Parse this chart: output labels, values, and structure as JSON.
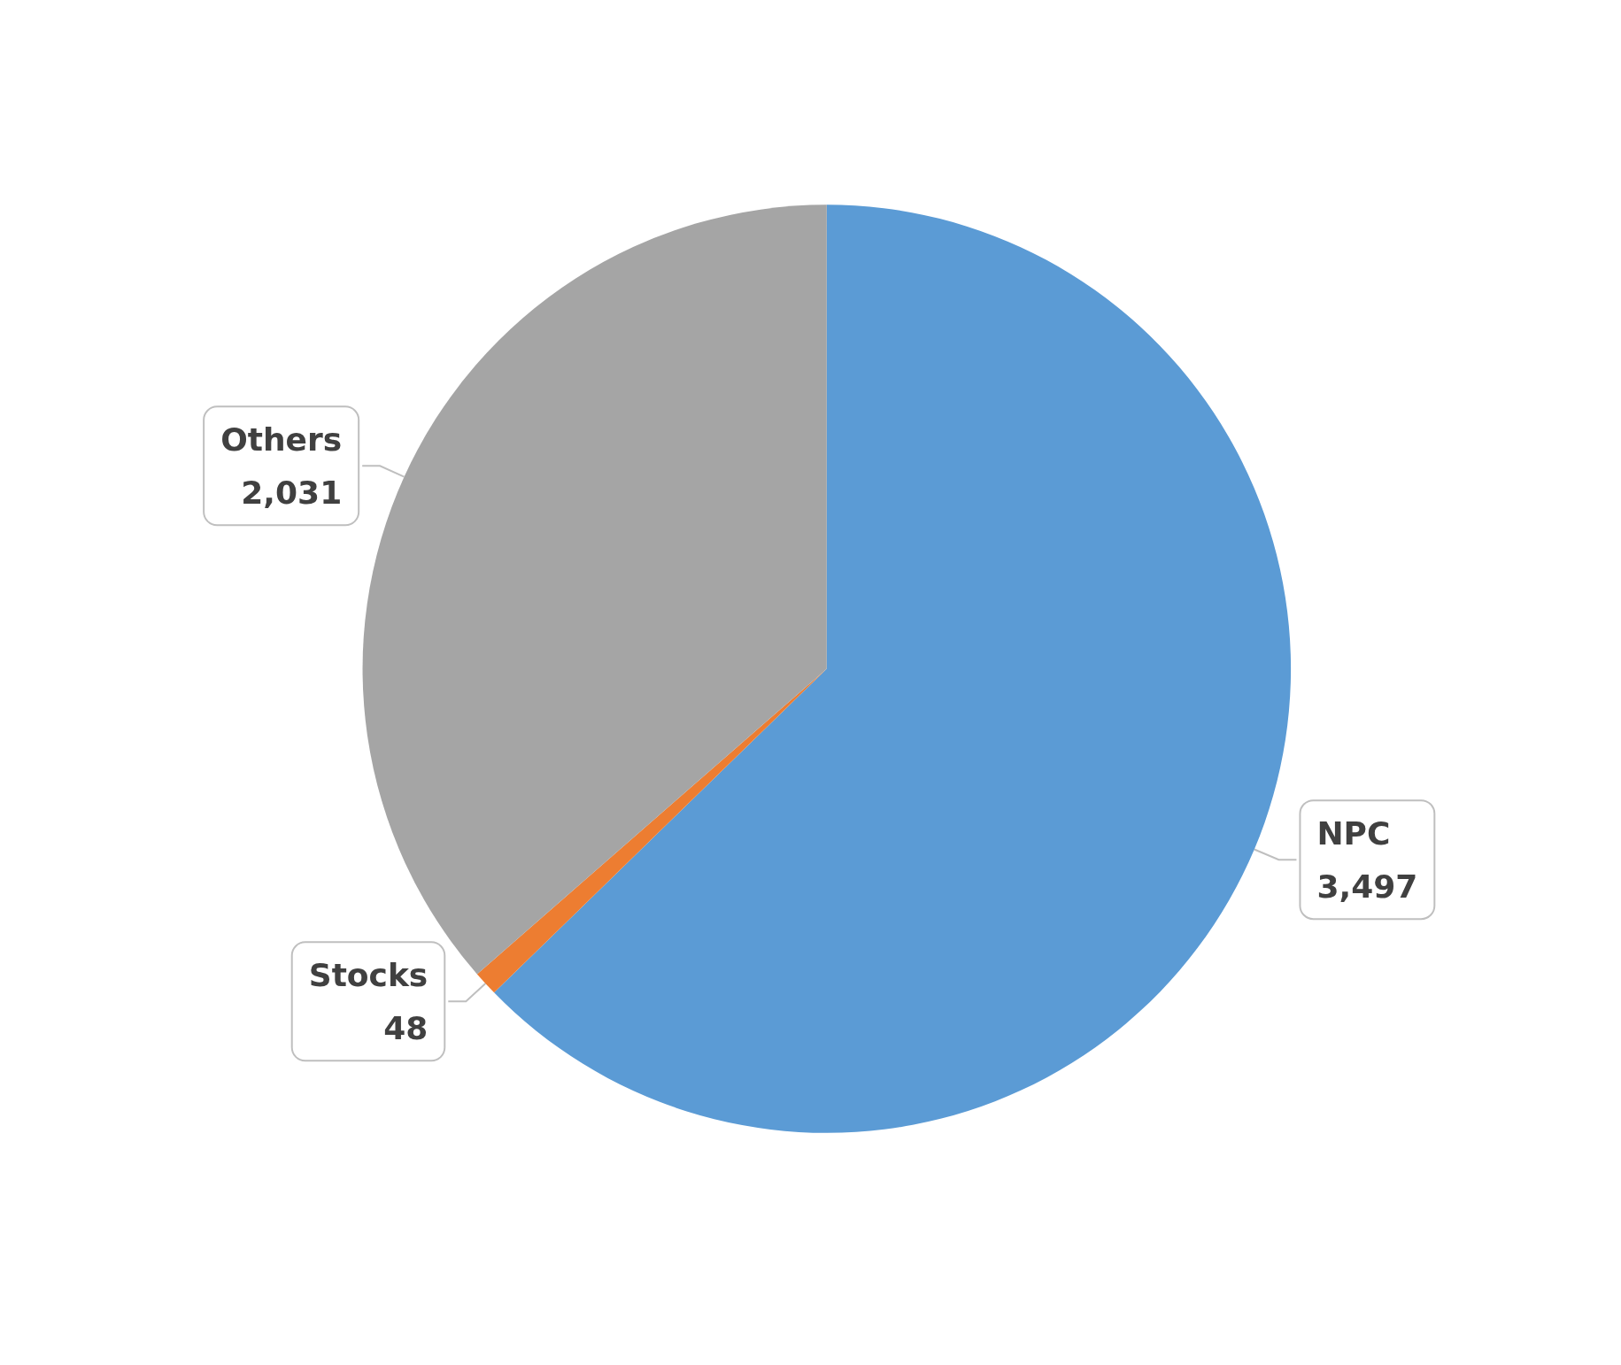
{
  "chart_data": {
    "type": "pie",
    "categories": [
      "NPC",
      "Stocks",
      "Others"
    ],
    "values": [
      3497,
      48,
      2031
    ],
    "value_labels": [
      "3,497",
      "48",
      "2,031"
    ],
    "colors": [
      "#5b9bd5",
      "#ed7d31",
      "#a5a5a5"
    ],
    "legend": false
  }
}
